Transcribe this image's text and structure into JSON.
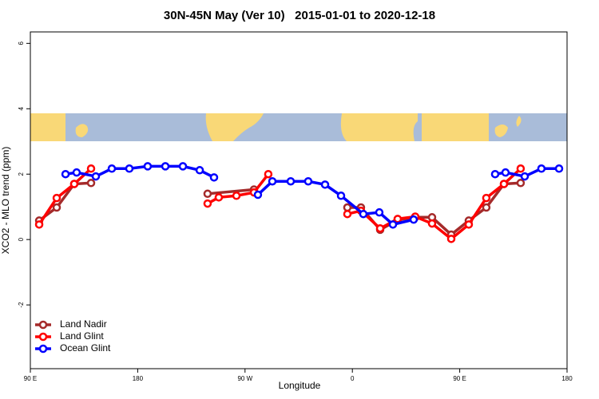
{
  "chart_data": {
    "type": "line",
    "title": "30N-45N May (Ver 10)   2015-01-01 to 2020-12-18",
    "x_label": "Longitude",
    "y_label": "XCO2 - MLO trend (ppm)",
    "xlim": [
      90,
      540
    ],
    "xticks": [
      {
        "value": 90,
        "label": "90 E"
      },
      {
        "value": 180,
        "label": "180"
      },
      {
        "value": 270,
        "label": "90 W"
      },
      {
        "value": 360,
        "label": "0"
      },
      {
        "value": 450,
        "label": "90 E"
      },
      {
        "value": 540,
        "label": "180"
      }
    ],
    "ylim": [
      -3.95,
      6.35
    ],
    "yticks": [
      -2,
      0,
      2,
      4,
      6
    ],
    "legend": "bottom-left",
    "series": [
      {
        "name": "Land Nadir",
        "color": "#a52a2a",
        "x": [
          97.4,
          112.1,
          126.8,
          140.9,
          null,
          238.6,
          277.5,
          null,
          355.8,
          367.2,
          383.3,
          398.0,
          412.7,
          426.8,
          442.9,
          457.6,
          472.3,
          487.1,
          501.1
        ],
        "values": [
          0.58,
          0.98,
          1.7,
          1.73,
          null,
          1.4,
          1.53,
          null,
          0.98,
          0.98,
          0.3,
          0.6,
          0.68,
          0.68,
          0.15,
          0.58,
          0.98,
          1.7,
          1.73
        ]
      },
      {
        "name": "Land Glint",
        "color": "#ff0000",
        "x": [
          97.4,
          112.1,
          126.8,
          140.9,
          null,
          238.6,
          248.0,
          262.8,
          277.5,
          289.5,
          null,
          355.8,
          367.2,
          383.3,
          398.0,
          412.7,
          426.8,
          442.9,
          457.6,
          472.3,
          487.1,
          501.1
        ],
        "values": [
          0.46,
          1.27,
          1.7,
          2.17,
          null,
          1.1,
          1.29,
          1.34,
          1.44,
          2.0,
          null,
          0.78,
          0.88,
          0.34,
          0.63,
          0.7,
          0.49,
          0.02,
          0.46,
          1.27,
          1.7,
          2.17
        ]
      },
      {
        "name": "Ocean Glint",
        "color": "#0000ff",
        "x": [
          119.5,
          128.8,
          144.9,
          158.3,
          173.0,
          188.4,
          203.2,
          217.9,
          232.0,
          244.0,
          null,
          280.8,
          292.9,
          308.3,
          323.0,
          337.1,
          350.5,
          369.2,
          382.6,
          394.0,
          411.4,
          null,
          479.7,
          488.4,
          504.5,
          518.5,
          533.3
        ],
        "values": [
          2.0,
          2.05,
          1.93,
          2.17,
          2.17,
          2.24,
          2.24,
          2.24,
          2.12,
          1.9,
          null,
          1.37,
          1.78,
          1.78,
          1.78,
          1.68,
          1.34,
          0.78,
          0.83,
          0.46,
          0.61,
          null,
          2.0,
          2.05,
          1.93,
          2.17,
          2.17
        ]
      }
    ]
  }
}
